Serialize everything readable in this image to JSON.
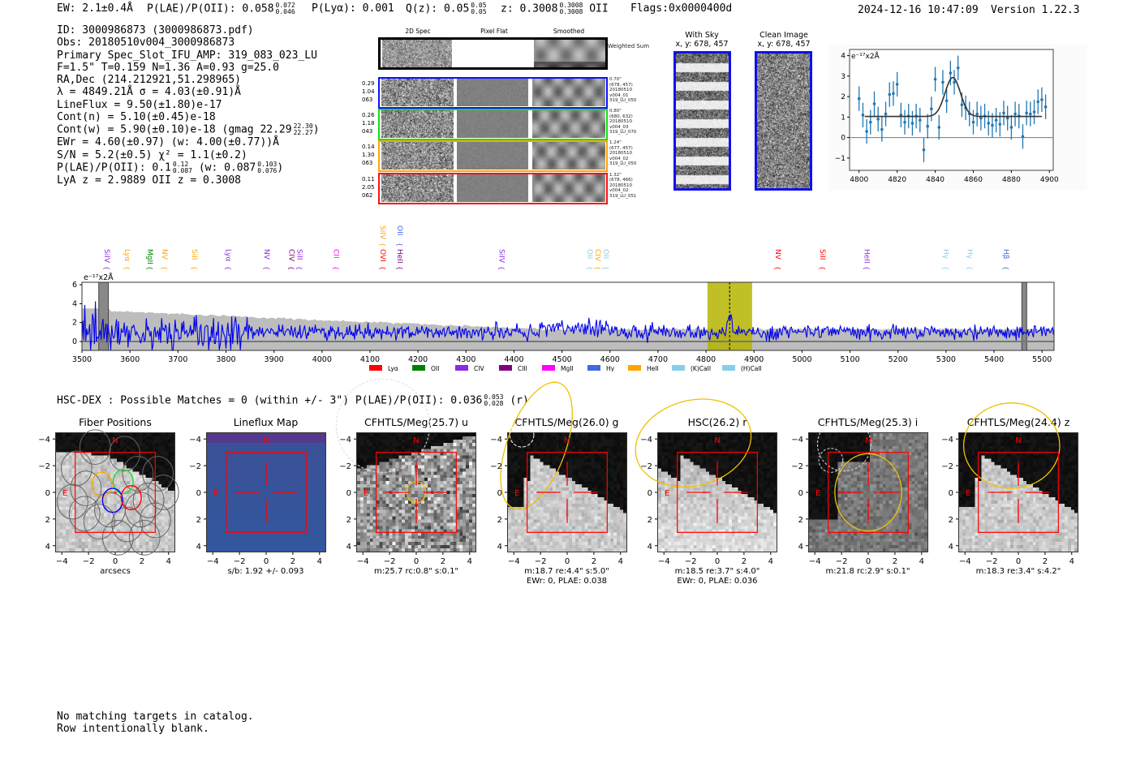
{
  "header": {
    "ew": "EW: 2.1±0.4Å",
    "plae": "P(LAE)/P(OII): 0.058",
    "plae_hi": "0.072",
    "plae_lo": "0.046",
    "plya": "P(Lyα): 0.001",
    "qz": "Q(z): 0.05",
    "qz_hi": "0.05",
    "qz_lo": "0.05",
    "z": "z: 0.3008",
    "z_hi": "0.3008",
    "z_lo": "0.3008",
    "z_line": "OII",
    "flags": "Flags:0x0000400d",
    "datetime": "2024-12-16 10:47:09",
    "version": "Version 1.22.3"
  },
  "info": {
    "lines": [
      "ID: 3000986873 (3000986873.pdf)",
      "Obs: 20180510v004_3000986873",
      "Primary Spec_Slot_IFU_AMP: 319_083_023_LU",
      "F=1.5\"  T=0.159  N=1.36  A=0.93  g=25.0",
      "RA,Dec (214.212921,51.298965)",
      "λ = 4849.21Å  σ = 4.03(±0.91)Å",
      "LineFlux = 9.50(±1.80)e-17",
      "Cont(n) = 5.10(±0.45)e-18"
    ],
    "contw": "Cont(w) = 5.90(±0.10)e-18 (gmag 22.29",
    "contw_hi": "22.30",
    "contw_lo": "22.27",
    "contw_end": ")",
    "ewr": "EWr = 4.60(±0.97) (w: 4.00(±0.77))Å",
    "sn": "S/N = 5.2(±0.5)  χ² = 1.1(±0.2)",
    "plae": "P(LAE)/P(OII): 0.1",
    "plae_hi": "0.12",
    "plae_lo": "0.087",
    "plae_w": "(w: 0.087",
    "plae_w_hi": "0.103",
    "plae_w_lo": "0.076",
    "plae_end": ")",
    "z": "LyA z = 2.9889   OII z = 0.3008"
  },
  "spec2d": {
    "headers": [
      "2D Spec",
      "Pixel Flat",
      "Smoothed"
    ],
    "weighted_label": "Weighted Sum",
    "rows": [
      {
        "color": "#1010ff",
        "left": [
          "0.29",
          "1.04",
          "063"
        ],
        "right": [
          "0.70\"",
          "(678, 457)",
          "20180510",
          "v004_01",
          "319_LU_050"
        ]
      },
      {
        "color": "#10e010",
        "left": [
          "0.26",
          "1.18",
          "043"
        ],
        "right": [
          "0.80\"",
          "(680, 632)",
          "20180510",
          "v004_03",
          "319_LU_070"
        ]
      },
      {
        "color": "#ffa500",
        "left": [
          "0.14",
          "1.30",
          "063"
        ],
        "right": [
          "1.24\"",
          "(677, 457)",
          "20180510",
          "v004_02",
          "319_LU_050"
        ]
      },
      {
        "color": "#ff1010",
        "left": [
          "0.11",
          "2.05",
          "062"
        ],
        "right": [
          "1.32\"",
          "(678, 466)",
          "20180510",
          "v004_02",
          "319_LU_051"
        ]
      }
    ]
  },
  "sky": {
    "title": "With Sky",
    "coords": "x, y: 678, 457"
  },
  "clean": {
    "title": "Clean Image",
    "coords": "x, y: 678, 457"
  },
  "chart_data": [
    {
      "type": "scatter",
      "title": "line fit",
      "ylabel": "e⁻¹⁷x2Å",
      "xlim": [
        4795,
        4902
      ],
      "ylim": [
        -1.6,
        4.3
      ],
      "xticks": [
        "4800",
        "4820",
        "4840",
        "4860",
        "4880",
        "4900"
      ],
      "yticks": [
        "4",
        "3",
        "2",
        "1",
        "0",
        "−1"
      ],
      "x": [
        4800,
        4802,
        4804,
        4806,
        4808,
        4810,
        4812,
        4814,
        4816,
        4818,
        4820,
        4822,
        4824,
        4826,
        4828,
        4830,
        4832,
        4834,
        4836,
        4838,
        4840,
        4842,
        4844,
        4846,
        4848,
        4850,
        4852,
        4854,
        4856,
        4858,
        4860,
        4862,
        4864,
        4866,
        4868,
        4870,
        4872,
        4874,
        4876,
        4878,
        4880,
        4882,
        4884,
        4886,
        4888,
        4890,
        4892,
        4894,
        4896,
        4898
      ],
      "y": [
        1.9,
        1.1,
        0.3,
        0.75,
        1.65,
        0.9,
        0.4,
        1.15,
        2.1,
        2.15,
        2.6,
        1.1,
        0.75,
        1.05,
        0.7,
        1.05,
        0.85,
        -0.6,
        0.55,
        1.4,
        2.85,
        0.5,
        2.7,
        1.8,
        3.15,
        2.7,
        3.4,
        1.6,
        1.45,
        1.15,
        0.75,
        1.15,
        0.95,
        1.05,
        0.7,
        0.6,
        0.85,
        0.65,
        1.2,
        0.95,
        0.5,
        1.15,
        1.05,
        0.05,
        1.2,
        1.15,
        1.25,
        1.75,
        1.85,
        1.5
      ],
      "yerr": 0.6,
      "fit": {
        "continuum": 1.03,
        "amplitude": 1.9,
        "center": 4849.21,
        "sigma": 4.03,
        "range": [
          4803,
          4896
        ]
      }
    },
    {
      "type": "line",
      "title": "full spectrum",
      "ylabel": "e⁻¹⁷x2Å",
      "xlim": [
        3500,
        5525
      ],
      "ylim": [
        -0.94,
        6.26
      ],
      "xticks": [
        "3500",
        "3600",
        "3700",
        "3800",
        "3900",
        "4000",
        "4100",
        "4200",
        "4300",
        "4400",
        "4500",
        "4600",
        "4700",
        "4800",
        "4900",
        "5000",
        "5100",
        "5200",
        "5300",
        "5400",
        "5500"
      ],
      "yticks": [
        "6",
        "4",
        "2",
        "0"
      ],
      "highlight": [
        4803,
        4896
      ],
      "line_center": 4849.2,
      "masked": [
        [
          3535,
          3555
        ],
        [
          5458,
          5468
        ]
      ],
      "line_labels": [
        {
          "t": "SiIV",
          "w": 3552,
          "c": "#8a2be2",
          "row": 0
        },
        {
          "t": "Lyα",
          "w": 3595,
          "c": "#ffa500",
          "row": 0
        },
        {
          "t": "MgII",
          "w": 3642,
          "c": "#008000",
          "row": 0
        },
        {
          "t": "NV",
          "w": 3672,
          "c": "#ffa500",
          "row": 0
        },
        {
          "t": "SiII",
          "w": 3735,
          "c": "#ffa500",
          "row": 0
        },
        {
          "t": "Lyα",
          "w": 3805,
          "c": "#8a2be2",
          "row": 0
        },
        {
          "t": "NV",
          "w": 3885,
          "c": "#8a2be2",
          "row": 0
        },
        {
          "t": "CIV",
          "w": 3937,
          "c": "#800080",
          "row": 0
        },
        {
          "t": "SiII",
          "w": 3953,
          "c": "#8a2be2",
          "row": 0
        },
        {
          "t": "CII",
          "w": 4030,
          "c": "#ff00ff",
          "row": 0
        },
        {
          "t": "OVI",
          "w": 4127,
          "c": "#ff0000",
          "row": 0
        },
        {
          "t": "HeII",
          "w": 4163,
          "c": "#800080",
          "row": 0
        },
        {
          "t": "SiIV",
          "w": 4127,
          "c": "#ffa500",
          "row": 1
        },
        {
          "t": "OII",
          "w": 4163,
          "c": "#4169e1",
          "row": 1
        },
        {
          "t": "SiIV",
          "w": 4375,
          "c": "#8a2be2",
          "row": 0
        },
        {
          "t": "OII",
          "w": 4558,
          "c": "#87ceeb",
          "row": 0
        },
        {
          "t": "CIV",
          "w": 4568,
          "c": "#ffa500",
          "row": 0
        },
        {
          "t": "OII",
          "w": 4580,
          "c": "#87ceeb",
          "row": 0
        },
        {
          "t": "NV",
          "w": 4950,
          "c": "#ff0000",
          "row": 0
        },
        {
          "t": "SiII",
          "w": 5043,
          "c": "#ff0000",
          "row": 0
        },
        {
          "t": "HeII",
          "w": 5135,
          "c": "#8a2be2",
          "row": 0
        },
        {
          "t": "Hγ",
          "w": 5300,
          "c": "#87ceeb",
          "row": 0
        },
        {
          "t": "Hγ",
          "w": 5350,
          "c": "#87ceeb",
          "row": 0
        },
        {
          "t": "Hβ",
          "w": 5425,
          "c": "#4169e1",
          "row": 0
        }
      ],
      "legend": [
        {
          "t": "Lyα",
          "c": "#ff0000"
        },
        {
          "t": "OII",
          "c": "#008000"
        },
        {
          "t": "CIV",
          "c": "#8a2be2"
        },
        {
          "t": "CIII",
          "c": "#800080"
        },
        {
          "t": "MgII",
          "c": "#ff00ff"
        },
        {
          "t": "Hγ",
          "c": "#4169e1"
        },
        {
          "t": "HeII",
          "c": "#ffa500"
        },
        {
          "t": "(K)CaII",
          "c": "#87ceeb"
        },
        {
          "t": "(H)CaII",
          "c": "#87ceeb"
        }
      ]
    }
  ],
  "hsc": {
    "text": "HSC-DEX : Possible Matches = 0 (within +/- 3\")  P(LAE)/P(OII): 0.036",
    "hi": "0.053",
    "lo": "0.028",
    "band": "(r)"
  },
  "cutouts": [
    {
      "title": "Fiber Positions",
      "foot": [
        "arcsecs"
      ],
      "kind": "fiber"
    },
    {
      "title": "Lineflux Map",
      "foot": [
        "s/b: 1.92 +/- 0.093"
      ],
      "kind": "lineflux"
    },
    {
      "title": "CFHTLS/Meg(25.7) u",
      "foot": [
        "m:25.7 rc:0.8\"  s:0.1\""
      ],
      "kind": "u"
    },
    {
      "title": "CFHTLS/Meg(26.0) g",
      "foot": [
        "m:18.7  re:4.4\"  s:5.0\"",
        "EWr: 0, PLAE: 0.038"
      ],
      "kind": "g"
    },
    {
      "title": "HSC(26.2) r",
      "foot": [
        "m:18.5  re:3.7\"  s:4.0\"",
        "EWr: 0, PLAE: 0.036"
      ],
      "kind": "r"
    },
    {
      "title": "CFHTLS/Meg(25.3) i",
      "foot": [
        "m:21.8 rc:2.9\"  s:0.1\""
      ],
      "kind": "i"
    },
    {
      "title": "CFHTLS/Meg(24.4) z",
      "foot": [
        "m:18.3  re:3.4\"  s:4.2\""
      ],
      "kind": "z"
    }
  ],
  "cutout_axis": {
    "ticks": [
      "−4",
      "−2",
      "0",
      "2",
      "4"
    ],
    "yticks": [
      "4",
      "2",
      "0",
      "−2",
      "−4"
    ],
    "north": "N",
    "east": "E"
  },
  "footer": {
    "line1": "No matching targets in catalog.",
    "line2": "Row intentionally blank."
  }
}
